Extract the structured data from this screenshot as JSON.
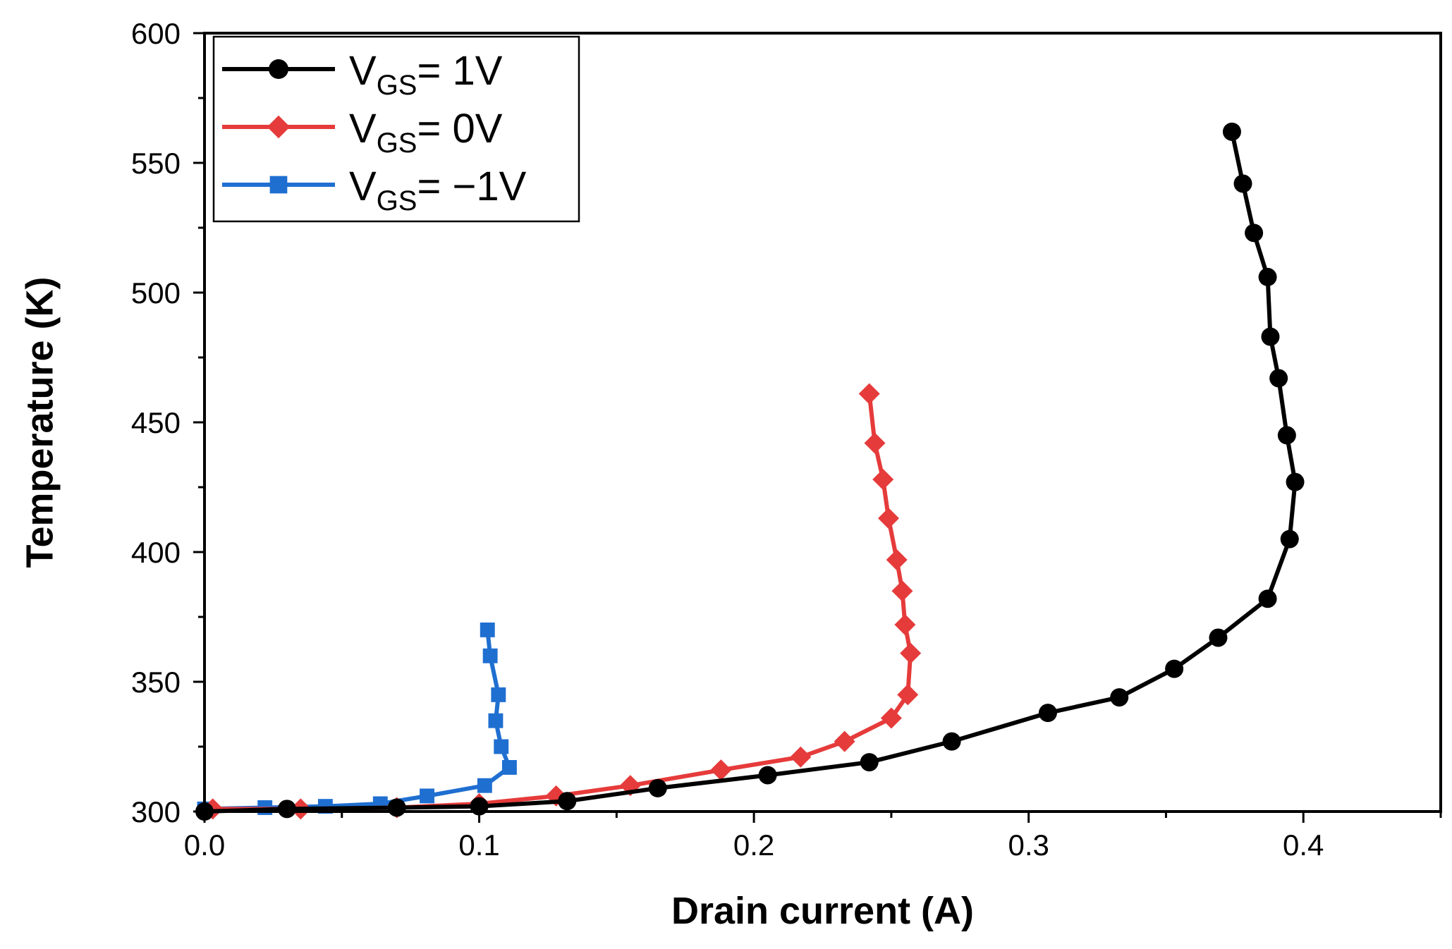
{
  "chart_data": {
    "type": "line",
    "title": "",
    "xlabel": "Drain current (A)",
    "ylabel": "Temperature (K)",
    "xlim": [
      0.0,
      0.45
    ],
    "ylim": [
      300,
      600
    ],
    "x_ticks": [
      0.0,
      0.1,
      0.2,
      0.3,
      0.4
    ],
    "x_tick_labels": [
      "0.0",
      "0.1",
      "0.2",
      "0.3",
      "0.4"
    ],
    "y_ticks": [
      300,
      350,
      400,
      450,
      500,
      550,
      600
    ],
    "y_tick_labels": [
      "300",
      "350",
      "400",
      "450",
      "500",
      "550",
      "600"
    ],
    "grid": false,
    "legend_position": "top-left",
    "series": [
      {
        "name": "VGS= 1V",
        "label_main": "V",
        "label_sub": "GS",
        "label_rest": "= 1V",
        "color": "#000000",
        "marker": "circle",
        "x": [
          0.0,
          0.03,
          0.07,
          0.1,
          0.132,
          0.165,
          0.205,
          0.242,
          0.272,
          0.307,
          0.333,
          0.353,
          0.369,
          0.387,
          0.395,
          0.397,
          0.394,
          0.391,
          0.388,
          0.387,
          0.382,
          0.378,
          0.374
        ],
        "y": [
          300,
          301,
          301.5,
          302,
          304,
          309,
          314,
          319,
          327,
          338,
          344,
          355,
          367,
          382,
          405,
          427,
          445,
          467,
          483,
          506,
          523,
          542,
          562
        ]
      },
      {
        "name": "VGS= 0V",
        "label_main": "V",
        "label_sub": "GS",
        "label_rest": "= 0V",
        "color": "#e63b3b",
        "marker": "diamond",
        "x": [
          0.003,
          0.035,
          0.07,
          0.1,
          0.128,
          0.155,
          0.188,
          0.217,
          0.233,
          0.25,
          0.256,
          0.257,
          0.255,
          0.254,
          0.252,
          0.249,
          0.247,
          0.244,
          0.242
        ],
        "y": [
          301,
          301,
          301.5,
          303,
          306,
          310,
          316,
          321,
          327,
          336,
          345,
          361,
          372,
          385,
          397,
          413,
          428,
          442,
          461
        ]
      },
      {
        "name": "VGS= −1V",
        "label_main": "V",
        "label_sub": "GS",
        "label_rest": "= −1V",
        "color": "#1f6fd1",
        "marker": "square",
        "x": [
          0.0,
          0.022,
          0.044,
          0.064,
          0.081,
          0.102,
          0.111,
          0.108,
          0.106,
          0.107,
          0.104,
          0.103
        ],
        "y": [
          301,
          301.5,
          302,
          303,
          306,
          310,
          317,
          325,
          335,
          345,
          360,
          370
        ]
      }
    ]
  }
}
